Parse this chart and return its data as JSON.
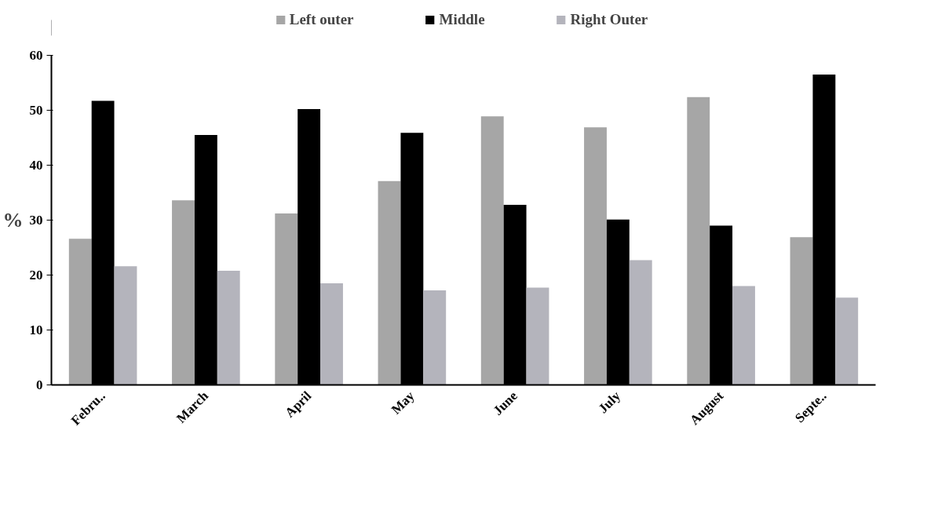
{
  "chart_data": {
    "type": "bar",
    "ylabel": "%",
    "categories": [
      "Febru..",
      "March",
      "April",
      "May",
      "June",
      "July",
      "August",
      "Septe.."
    ],
    "series": [
      {
        "name": "Left outer",
        "color": "#a6a6a6",
        "values": [
          26.6,
          33.6,
          31.2,
          37.1,
          48.9,
          46.9,
          52.4,
          26.9
        ]
      },
      {
        "name": "Middle",
        "color": "#000000",
        "values": [
          51.7,
          45.5,
          50.2,
          45.9,
          32.8,
          30.1,
          29.0,
          56.5
        ]
      },
      {
        "name": "Right Outer",
        "color": "#b4b4bc",
        "values": [
          21.6,
          20.8,
          18.5,
          17.2,
          17.7,
          22.7,
          18.0,
          15.9
        ]
      }
    ],
    "ylim": [
      0,
      60
    ],
    "yticks": [
      0,
      10,
      20,
      30,
      40,
      50,
      60
    ],
    "grid": false,
    "legend": "top"
  }
}
